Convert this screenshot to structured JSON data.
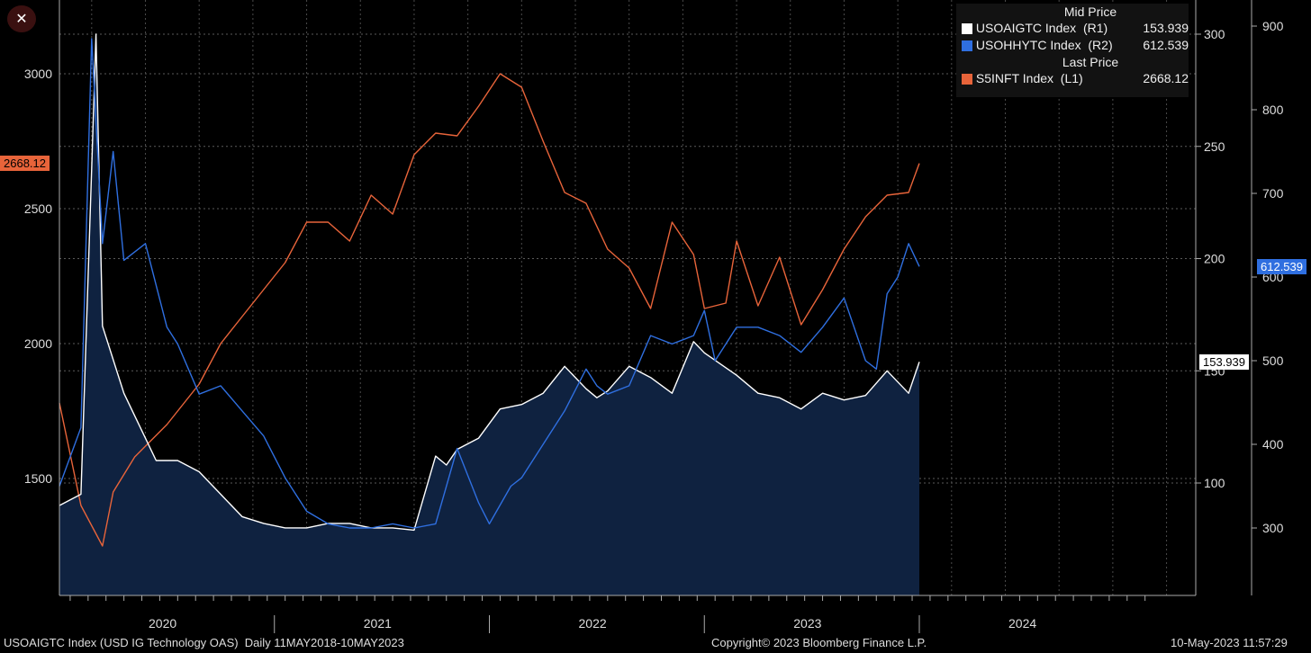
{
  "close_icon": "close-icon",
  "legend": {
    "mid_header": "Mid Price",
    "last_header": "Last Price",
    "items": [
      {
        "name": "USOAIGTC Index  (R1)",
        "value": "153.939",
        "color": "#ffffff"
      },
      {
        "name": "USOHHYTC Index  (R2)",
        "value": "612.539",
        "color": "#2f6fe0"
      },
      {
        "name": "S5INFT Index  (L1)",
        "value": "2668.12",
        "color": "#e8643a"
      }
    ]
  },
  "tags": {
    "left": "2668.12",
    "r1": "153.939",
    "r2": "612.539"
  },
  "footer": {
    "left": "USOAIGTC Index (USD IG Technology OAS)  Daily 11MAY2018-10MAY2023",
    "center": "Copyright© 2023 Bloomberg Finance L.P.",
    "right": "10-May-2023 11:57:29"
  },
  "chart_data": {
    "type": "line",
    "x_ticks": [
      "2020",
      "2021",
      "2022",
      "2023",
      "2024"
    ],
    "axes": {
      "L1": {
        "ticks": [
          1500,
          2000,
          2500,
          3000
        ]
      },
      "R1": {
        "ticks": [
          100,
          150,
          200,
          250,
          300
        ]
      },
      "R2": {
        "ticks": [
          300,
          400,
          500,
          600,
          700,
          800,
          900
        ]
      }
    },
    "grid": true,
    "series": [
      {
        "name": "S5INFT Index",
        "axis": "L1",
        "color": "#e8643a",
        "x": [
          2019.35,
          2019.45,
          2019.55,
          2019.6,
          2019.7,
          2019.85,
          2020.0,
          2020.1,
          2020.2,
          2020.3,
          2020.4,
          2020.5,
          2020.6,
          2020.7,
          2020.8,
          2020.9,
          2021.0,
          2021.1,
          2021.2,
          2021.3,
          2021.4,
          2021.5,
          2021.6,
          2021.7,
          2021.8,
          2021.9,
          2022.0,
          2022.1,
          2022.2,
          2022.3,
          2022.35,
          2022.45,
          2022.5,
          2022.6,
          2022.7,
          2022.8,
          2022.9,
          2023.0,
          2023.1,
          2023.2,
          2023.3,
          2023.35
        ],
        "values": [
          1780,
          1400,
          1250,
          1450,
          1580,
          1700,
          1850,
          2000,
          2100,
          2200,
          2300,
          2450,
          2450,
          2380,
          2550,
          2480,
          2700,
          2780,
          2770,
          2880,
          3000,
          2950,
          2750,
          2560,
          2520,
          2350,
          2280,
          2130,
          2450,
          2330,
          2130,
          2150,
          2380,
          2140,
          2320,
          2070,
          2200,
          2350,
          2470,
          2550,
          2560,
          2668
        ]
      },
      {
        "name": "USOAIGTC Index",
        "axis": "R1",
        "color": "#ffffff",
        "fill": true,
        "x": [
          2019.35,
          2019.45,
          2019.5,
          2019.52,
          2019.55,
          2019.65,
          2019.8,
          2019.9,
          2020.0,
          2020.1,
          2020.2,
          2020.3,
          2020.4,
          2020.5,
          2020.6,
          2020.7,
          2020.8,
          2020.9,
          2021.0,
          2021.1,
          2021.15,
          2021.2,
          2021.3,
          2021.4,
          2021.5,
          2021.6,
          2021.7,
          2021.8,
          2021.85,
          2021.9,
          2022.0,
          2022.1,
          2022.2,
          2022.3,
          2022.35,
          2022.5,
          2022.6,
          2022.7,
          2022.8,
          2022.9,
          2023.0,
          2023.1,
          2023.2,
          2023.3,
          2023.35
        ],
        "values": [
          90,
          95,
          240,
          300,
          170,
          140,
          110,
          110,
          105,
          95,
          85,
          82,
          80,
          80,
          82,
          82,
          80,
          80,
          79,
          112,
          108,
          115,
          120,
          133,
          135,
          140,
          152,
          142,
          138,
          141,
          152,
          147,
          140,
          163,
          158,
          148,
          140,
          138,
          133,
          140,
          137,
          139,
          150,
          140,
          153.939
        ]
      },
      {
        "name": "USOHHYTC Index",
        "axis": "R2",
        "color": "#2f6fe0",
        "x": [
          2019.35,
          2019.45,
          2019.5,
          2019.55,
          2019.6,
          2019.65,
          2019.75,
          2019.85,
          2019.9,
          2020.0,
          2020.1,
          2020.2,
          2020.3,
          2020.4,
          2020.5,
          2020.6,
          2020.7,
          2020.8,
          2020.9,
          2021.0,
          2021.1,
          2021.15,
          2021.2,
          2021.3,
          2021.35,
          2021.45,
          2021.5,
          2021.6,
          2021.7,
          2021.8,
          2021.85,
          2021.9,
          2022.0,
          2022.1,
          2022.2,
          2022.3,
          2022.35,
          2022.4,
          2022.5,
          2022.6,
          2022.7,
          2022.8,
          2022.9,
          2023.0,
          2023.1,
          2023.15,
          2023.2,
          2023.25,
          2023.3,
          2023.35
        ],
        "values": [
          350,
          420,
          885,
          640,
          750,
          620,
          640,
          540,
          520,
          460,
          470,
          440,
          410,
          360,
          320,
          305,
          300,
          300,
          305,
          300,
          305,
          350,
          395,
          330,
          305,
          350,
          360,
          400,
          440,
          490,
          470,
          460,
          470,
          530,
          520,
          530,
          560,
          500,
          540,
          540,
          530,
          510,
          540,
          575,
          500,
          490,
          580,
          600,
          640,
          612.539
        ]
      }
    ]
  }
}
